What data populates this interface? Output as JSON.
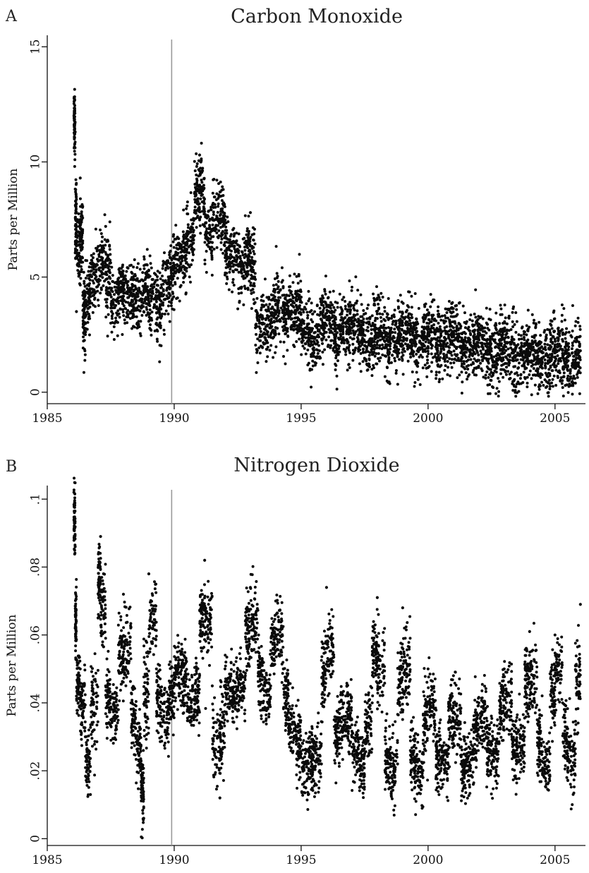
{
  "chart_data": [
    {
      "panel": "A",
      "type": "scatter",
      "title": "Carbon Monoxide",
      "xlabel": "",
      "ylabel": "Parts per Million",
      "xlim": [
        1985,
        2006.2
      ],
      "ylim": [
        -0.5,
        15.5
      ],
      "xticks": [
        1985,
        1990,
        1995,
        2000,
        2005
      ],
      "xtick_labels": [
        "1985",
        "1990",
        "1995",
        "2000",
        "2005"
      ],
      "yticks": [
        0,
        5,
        10,
        15
      ],
      "ytick_labels": [
        "0",
        "5",
        "10",
        "15"
      ],
      "reference_line_x": 1989.9,
      "grid": false,
      "legend": "none",
      "marker_color": "#0a0a0a",
      "reference_line_color": "#9a9a9a",
      "series": [
        {
          "x": [
            1986.05,
            1986.1,
            1986.15,
            1986.3,
            1986.4,
            1986.5,
            1986.7,
            1987.0,
            1987.3,
            1987.5,
            1987.8,
            1988.0,
            1988.3,
            1988.5,
            1988.8,
            1989.0,
            1989.3,
            1989.5,
            1989.8,
            1990.0,
            1990.3,
            1990.5,
            1990.8,
            1991.0,
            1991.2,
            1991.5,
            1991.8,
            1992.0,
            1992.2,
            1992.5,
            1992.8,
            1993.0,
            1993.2,
            1993.5,
            1993.8,
            1994.0,
            1994.3,
            1994.5,
            1994.8,
            1995.0,
            1995.3,
            1995.5,
            1995.8,
            1996.0,
            1996.3,
            1996.5,
            1996.8,
            1997.0,
            1997.3,
            1997.5,
            1997.8,
            1998.0,
            1998.3,
            1998.5,
            1998.8,
            1999.0,
            1999.3,
            1999.5,
            1999.8,
            2000.0,
            2000.3,
            2000.5,
            2000.8,
            2001.0,
            2001.3,
            2001.5,
            2001.8,
            2002.0,
            2002.3,
            2002.5,
            2002.8,
            2003.0,
            2003.3,
            2003.5,
            2003.8,
            2004.0,
            2004.3,
            2004.5,
            2004.8,
            2005.0,
            2005.3,
            2005.5,
            2005.8,
            2006.0
          ],
          "y": [
            12.0,
            11.3,
            3.5,
            9.3,
            4.2,
            2.5,
            5.6,
            4.0,
            7.2,
            3.0,
            4.5,
            4.6,
            3.8,
            4.5,
            3.5,
            5.3,
            3.0,
            4.3,
            4.8,
            5.5,
            5.8,
            6.2,
            6.8,
            10.3,
            7.2,
            6.5,
            8.5,
            6.5,
            5.8,
            6.4,
            4.5,
            7.8,
            2.8,
            3.2,
            2.5,
            4.0,
            3.5,
            3.2,
            4.0,
            3.0,
            2.6,
            2.2,
            2.8,
            3.8,
            2.5,
            2.3,
            3.0,
            2.8,
            2.5,
            2.2,
            2.3,
            3.2,
            2.2,
            2.0,
            2.3,
            2.9,
            2.5,
            2.0,
            2.1,
            2.6,
            2.3,
            2.0,
            2.5,
            2.8,
            2.2,
            1.9,
            2.0,
            2.5,
            1.7,
            1.5,
            1.6,
            2.3,
            1.7,
            1.6,
            1.5,
            2.1,
            1.5,
            1.3,
            1.4,
            2.0,
            1.5,
            1.1,
            1.3,
            1.8
          ]
        }
      ]
    },
    {
      "panel": "B",
      "type": "scatter",
      "title": "Nitrogen Dioxide",
      "xlabel": "",
      "ylabel": "Parts per Million",
      "xlim": [
        1985,
        2006.2
      ],
      "ylim": [
        -0.002,
        0.104
      ],
      "xticks": [
        1985,
        1990,
        1995,
        2000,
        2005
      ],
      "xtick_labels": [
        "1985",
        "1990",
        "1995",
        "2000",
        "2005"
      ],
      "yticks": [
        0,
        0.02,
        0.04,
        0.06,
        0.08,
        0.1
      ],
      "ytick_labels": [
        "0",
        ".02",
        ".04",
        ".06",
        ".08",
        ".1"
      ],
      "reference_line_x": 1989.9,
      "grid": false,
      "legend": "none",
      "marker_color": "#0a0a0a",
      "reference_line_color": "#9a9a9a",
      "series": [
        {
          "x": [
            1986.05,
            1986.1,
            1986.15,
            1986.3,
            1986.5,
            1986.7,
            1987.0,
            1987.1,
            1987.3,
            1987.5,
            1987.8,
            1988.0,
            1988.3,
            1988.5,
            1988.7,
            1988.8,
            1989.0,
            1989.3,
            1989.5,
            1989.8,
            1990.0,
            1990.3,
            1990.5,
            1990.8,
            1991.0,
            1991.2,
            1991.5,
            1991.8,
            1992.0,
            1992.3,
            1992.5,
            1992.8,
            1993.0,
            1993.3,
            1993.5,
            1993.8,
            1994.0,
            1994.3,
            1994.5,
            1994.8,
            1995.0,
            1995.3,
            1995.5,
            1995.8,
            1996.0,
            1996.3,
            1996.5,
            1996.8,
            1997.0,
            1997.3,
            1997.5,
            1997.8,
            1998.0,
            1998.3,
            1998.5,
            1998.8,
            1999.0,
            1999.3,
            1999.5,
            1999.8,
            2000.0,
            2000.3,
            2000.5,
            2000.8,
            2001.0,
            2001.3,
            2001.5,
            2001.8,
            2002.0,
            2002.3,
            2002.5,
            2002.8,
            2003.0,
            2003.3,
            2003.5,
            2003.8,
            2004.0,
            2004.3,
            2004.5,
            2004.8,
            2005.0,
            2005.3,
            2005.5,
            2005.8,
            2006.0
          ],
          "y": [
            0.102,
            0.086,
            0.042,
            0.05,
            0.03,
            0.013,
            0.065,
            0.089,
            0.045,
            0.035,
            0.038,
            0.072,
            0.04,
            0.03,
            0.022,
            0.006,
            0.078,
            0.05,
            0.03,
            0.04,
            0.045,
            0.055,
            0.04,
            0.038,
            0.048,
            0.082,
            0.045,
            0.012,
            0.05,
            0.04,
            0.042,
            0.048,
            0.074,
            0.055,
            0.04,
            0.045,
            0.07,
            0.05,
            0.035,
            0.03,
            0.025,
            0.02,
            0.028,
            0.022,
            0.074,
            0.035,
            0.025,
            0.045,
            0.03,
            0.02,
            0.025,
            0.04,
            0.071,
            0.03,
            0.018,
            0.022,
            0.068,
            0.03,
            0.02,
            0.018,
            0.05,
            0.03,
            0.02,
            0.025,
            0.048,
            0.022,
            0.02,
            0.025,
            0.04,
            0.03,
            0.022,
            0.028,
            0.05,
            0.03,
            0.025,
            0.03,
            0.061,
            0.035,
            0.02,
            0.025,
            0.06,
            0.04,
            0.02,
            0.025,
            0.069
          ]
        }
      ]
    }
  ]
}
